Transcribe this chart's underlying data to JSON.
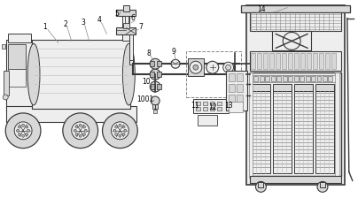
{
  "bg_color": "#ffffff",
  "line_color": "#3a3a3a",
  "gray1": "#bbbbbb",
  "gray2": "#888888",
  "gray3": "#555555",
  "fill_light": "#eeeeee",
  "fill_mid": "#d8d8d8",
  "fill_dark": "#b8b8b8",
  "figsize": [
    4.04,
    2.24
  ],
  "dpi": 100
}
